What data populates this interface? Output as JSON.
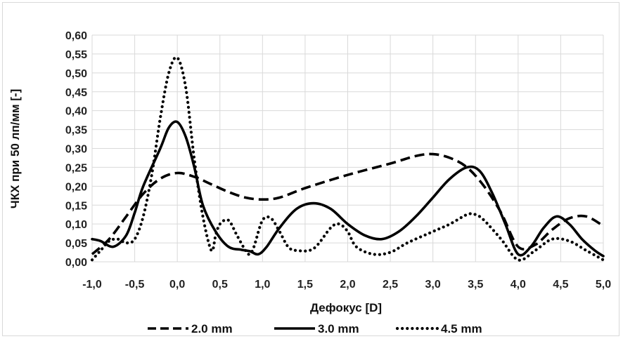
{
  "chart_data": {
    "type": "line",
    "title": "",
    "xlabel": "Дефокус [D]",
    "ylabel": "ЧКХ при 50 лп/мм [-]",
    "xlim": [
      -1.0,
      5.0
    ],
    "ylim": [
      0.0,
      0.6
    ],
    "grid": true,
    "legend_position": "bottom",
    "x_ticks": [
      "-1,0",
      "-0,5",
      "0,0",
      "0,5",
      "1,0",
      "1,5",
      "2,0",
      "2,5",
      "3,0",
      "3,5",
      "4,0",
      "4,5",
      "5,0"
    ],
    "y_ticks": [
      "0,00",
      "0,05",
      "0,10",
      "0,15",
      "0,20",
      "0,25",
      "0,30",
      "0,35",
      "0,40",
      "0,45",
      "0,50",
      "0,55",
      "0,60"
    ],
    "series": [
      {
        "name": "2.0 mm",
        "style": "dashed",
        "x": [
          -1.0,
          -0.8,
          -0.6,
          -0.4,
          -0.2,
          0.0,
          0.2,
          0.4,
          0.6,
          0.8,
          1.0,
          1.2,
          1.5,
          2.0,
          2.5,
          2.8,
          3.0,
          3.2,
          3.4,
          3.6,
          3.8,
          4.0,
          4.2,
          4.4,
          4.6,
          4.8,
          5.0
        ],
        "y": [
          0.02,
          0.06,
          0.12,
          0.18,
          0.22,
          0.235,
          0.225,
          0.205,
          0.185,
          0.17,
          0.165,
          0.17,
          0.195,
          0.23,
          0.26,
          0.28,
          0.285,
          0.275,
          0.25,
          0.2,
          0.13,
          0.04,
          0.045,
          0.085,
          0.115,
          0.12,
          0.095
        ]
      },
      {
        "name": "3.0 mm",
        "style": "solid",
        "x": [
          -1.0,
          -0.9,
          -0.75,
          -0.6,
          -0.5,
          -0.4,
          -0.2,
          -0.1,
          0.0,
          0.1,
          0.2,
          0.3,
          0.45,
          0.6,
          0.75,
          0.85,
          0.95,
          1.05,
          1.2,
          1.4,
          1.6,
          1.8,
          2.0,
          2.2,
          2.4,
          2.6,
          2.8,
          3.0,
          3.2,
          3.4,
          3.55,
          3.7,
          3.85,
          4.0,
          4.15,
          4.3,
          4.45,
          4.6,
          4.75,
          4.9,
          5.0
        ],
        "y": [
          0.06,
          0.055,
          0.04,
          0.07,
          0.13,
          0.2,
          0.3,
          0.355,
          0.37,
          0.33,
          0.25,
          0.15,
          0.08,
          0.04,
          0.032,
          0.028,
          0.02,
          0.04,
          0.09,
          0.14,
          0.155,
          0.14,
          0.1,
          0.07,
          0.06,
          0.08,
          0.12,
          0.17,
          0.22,
          0.25,
          0.24,
          0.18,
          0.1,
          0.02,
          0.04,
          0.09,
          0.12,
          0.1,
          0.06,
          0.03,
          0.015
        ]
      },
      {
        "name": "4.5 mm",
        "style": "dotted",
        "x": [
          -1.0,
          -0.9,
          -0.8,
          -0.7,
          -0.6,
          -0.5,
          -0.4,
          -0.3,
          -0.2,
          -0.1,
          0.0,
          0.1,
          0.2,
          0.3,
          0.4,
          0.45,
          0.5,
          0.6,
          0.7,
          0.8,
          0.85,
          0.9,
          1.0,
          1.1,
          1.2,
          1.3,
          1.4,
          1.6,
          1.8,
          1.9,
          2.0,
          2.1,
          2.3,
          2.5,
          2.7,
          3.0,
          3.2,
          3.4,
          3.5,
          3.6,
          3.8,
          4.0,
          4.2,
          4.4,
          4.6,
          4.8,
          5.0
        ],
        "y": [
          0.005,
          0.03,
          0.055,
          0.06,
          0.05,
          0.06,
          0.12,
          0.23,
          0.38,
          0.5,
          0.54,
          0.46,
          0.27,
          0.12,
          0.03,
          0.07,
          0.1,
          0.11,
          0.07,
          0.03,
          0.02,
          0.04,
          0.11,
          0.115,
          0.08,
          0.04,
          0.03,
          0.035,
          0.09,
          0.1,
          0.08,
          0.04,
          0.02,
          0.025,
          0.05,
          0.08,
          0.1,
          0.125,
          0.125,
          0.11,
          0.06,
          0.005,
          0.03,
          0.06,
          0.055,
          0.03,
          0.005
        ]
      }
    ]
  }
}
